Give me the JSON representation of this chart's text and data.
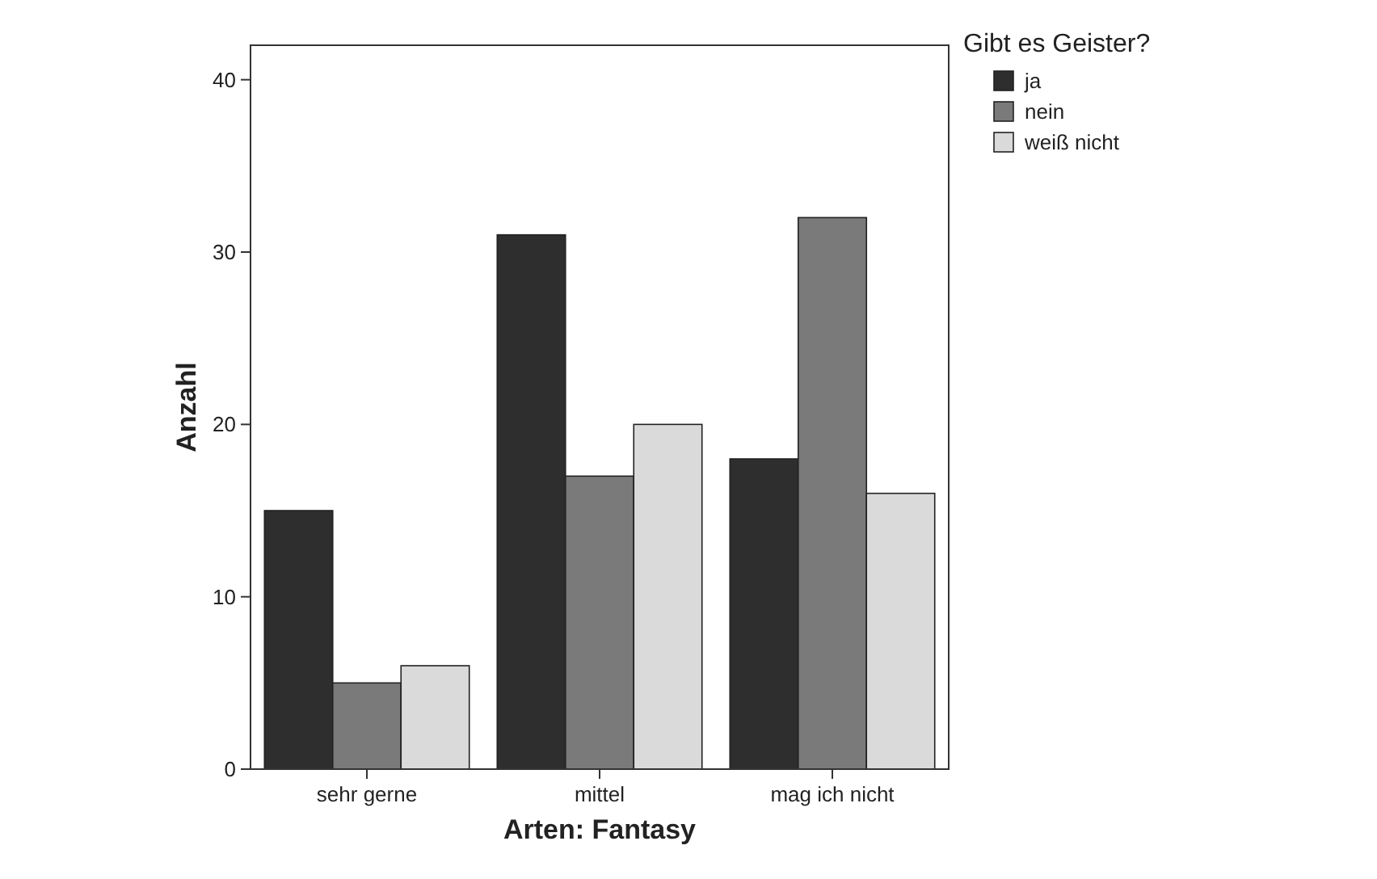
{
  "chart_data": {
    "type": "bar",
    "xlabel": "Arten: Fantasy",
    "ylabel": "Anzahl",
    "legend_title": "Gibt es Geister?",
    "legend": "right",
    "categories": [
      "sehr gerne",
      "mittel",
      "mag ich nicht"
    ],
    "series": [
      {
        "name": "ja",
        "color": "#2e2e2e",
        "values": [
          15,
          31,
          18
        ]
      },
      {
        "name": "nein",
        "color": "#7a7a7a",
        "values": [
          5,
          17,
          32
        ]
      },
      {
        "name": "weiß nicht",
        "color": "#dadada",
        "values": [
          6,
          20,
          16
        ]
      }
    ],
    "ylim": [
      0,
      42
    ],
    "yticks": [
      0,
      10,
      20,
      30,
      40
    ],
    "grid": false
  }
}
